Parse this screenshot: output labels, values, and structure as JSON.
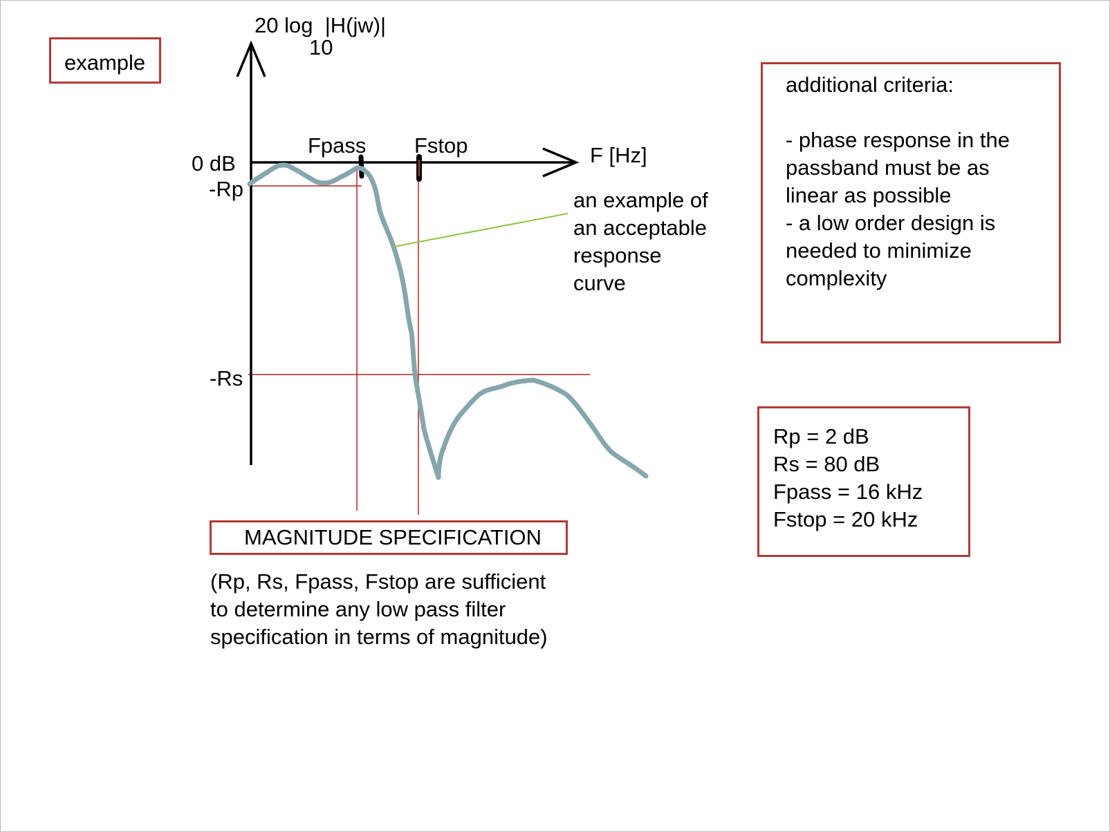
{
  "labels": {
    "example": "example",
    "y_axis_main": "20 log  |H(jw)|",
    "y_axis_sub": "10",
    "x_axis": "F [Hz]",
    "zero_db": "0 dB",
    "minus_rp": "-Rp",
    "minus_rs": "-Rs",
    "fpass": "Fpass",
    "fstop": "Fstop",
    "curve_annotation": "an example of\nan acceptable\nresponse\ncurve",
    "magnitude_title": "MAGNITUDE SPECIFICATION",
    "magnitude_note": "(Rp, Rs, Fpass, Fstop are sufficient\nto determine any low pass filter\nspecification in terms of magnitude)"
  },
  "criteria": {
    "text": "additional criteria:\n\n- phase response in the\npassband must be as\nlinear as possible\n- a low order design is\nneeded to minimize\ncomplexity"
  },
  "params": [
    "Rp = 2 dB",
    "Rs = 80 dB",
    "Fpass = 16 kHz",
    "Fstop = 20 kHz"
  ],
  "colors": {
    "box_border": "#b23a36",
    "spec_lines": "#b22222",
    "curve": "#86a6ad",
    "pointer": "#8cc63f",
    "axis": "#000000"
  }
}
